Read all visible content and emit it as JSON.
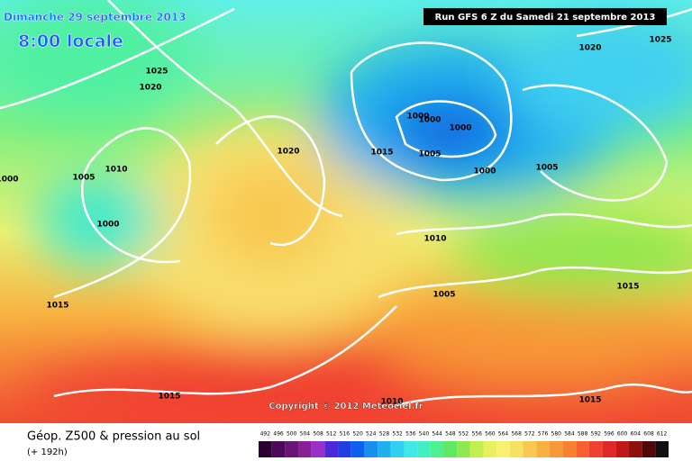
{
  "header": {
    "date": "Dimanche 29 septembre 2013",
    "time": "8:00 locale",
    "run": "Run GFS 6 Z du Samedi 21 septembre 2013"
  },
  "copyright": "Copyright © 2012 Meteociel.fr",
  "footer": {
    "title": "Géop. Z500 & pression au sol",
    "lead": "(+ 192h)"
  },
  "legend": {
    "labels": [
      "492",
      "496",
      "500",
      "504",
      "508",
      "512",
      "516",
      "520",
      "524",
      "528",
      "532",
      "536",
      "540",
      "544",
      "548",
      "552",
      "556",
      "560",
      "564",
      "568",
      "572",
      "576",
      "580",
      "584",
      "588",
      "592",
      "596",
      "600",
      "604",
      "608",
      "612"
    ],
    "colors": [
      "#2a0033",
      "#4b0a5a",
      "#6a1478",
      "#8a1e96",
      "#9b30c8",
      "#4a2ad8",
      "#2040e0",
      "#1060f0",
      "#1890f0",
      "#20b0f0",
      "#30d0f0",
      "#40e8e8",
      "#40f0c0",
      "#50f090",
      "#60e860",
      "#90e850",
      "#c0f050",
      "#e8f060",
      "#f8f070",
      "#f8e060",
      "#f8c850",
      "#f8b040",
      "#f89838",
      "#f88030",
      "#f86030",
      "#f04030",
      "#e02828",
      "#c01818",
      "#901010",
      "#500808",
      "#101010"
    ]
  },
  "isobars": [
    "1025",
    "1020",
    "1010",
    "1005",
    "1000",
    "1000",
    "1015",
    "1020",
    "1015",
    "1000",
    "1000",
    "1000",
    "1005",
    "1000",
    "1005",
    "1020",
    "1025",
    "1010",
    "1005",
    "1015",
    "1015",
    "1015",
    "1010"
  ]
}
